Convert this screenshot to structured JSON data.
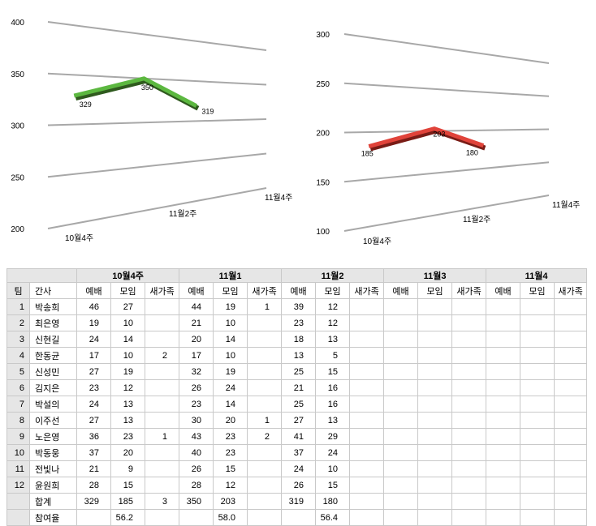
{
  "chart_data": [
    {
      "type": "line",
      "categories": [
        "10월4주",
        "11월2주",
        "11월4주"
      ],
      "values": [
        329,
        350,
        319
      ],
      "ylim": [
        200,
        400
      ],
      "yticks": [
        200,
        250,
        300,
        350,
        400
      ],
      "color": "#5cb840",
      "shade_color": "#2f5a1e"
    },
    {
      "type": "line",
      "categories": [
        "10월4주",
        "11월2주",
        "11월4주"
      ],
      "values": [
        185,
        203,
        180
      ],
      "ylim": [
        100,
        300
      ],
      "yticks": [
        100,
        150,
        200,
        250,
        300
      ],
      "color": "#e0433a",
      "shade_color": "#7a1c16"
    }
  ],
  "table": {
    "week_headers": [
      "10월4주",
      "11월1",
      "11월2",
      "11월3",
      "11월4"
    ],
    "columns": [
      "팀",
      "간사",
      "예배",
      "모임",
      "새가족",
      "예배",
      "모임",
      "새가족",
      "예배",
      "모임",
      "새가족",
      "예배",
      "모임",
      "새가족",
      "예배",
      "모임",
      "새가족"
    ],
    "rows": [
      [
        "1",
        "박송희",
        "46",
        "27",
        "",
        "44",
        "19",
        "1",
        "39",
        "12",
        "",
        "",
        "",
        "",
        "",
        "",
        ""
      ],
      [
        "2",
        "최은영",
        "19",
        "10",
        "",
        "21",
        "10",
        "",
        "23",
        "12",
        "",
        "",
        "",
        "",
        "",
        "",
        ""
      ],
      [
        "3",
        "신현길",
        "24",
        "14",
        "",
        "20",
        "14",
        "",
        "18",
        "13",
        "",
        "",
        "",
        "",
        "",
        "",
        ""
      ],
      [
        "4",
        "한동균",
        "17",
        "10",
        "2",
        "17",
        "10",
        "",
        "13",
        "5",
        "",
        "",
        "",
        "",
        "",
        "",
        ""
      ],
      [
        "5",
        "신성민",
        "27",
        "19",
        "",
        "32",
        "19",
        "",
        "25",
        "15",
        "",
        "",
        "",
        "",
        "",
        "",
        ""
      ],
      [
        "6",
        "김지은",
        "23",
        "12",
        "",
        "26",
        "24",
        "",
        "21",
        "16",
        "",
        "",
        "",
        "",
        "",
        "",
        ""
      ],
      [
        "7",
        "박설의",
        "24",
        "13",
        "",
        "23",
        "14",
        "",
        "25",
        "16",
        "",
        "",
        "",
        "",
        "",
        "",
        ""
      ],
      [
        "8",
        "이주선",
        "27",
        "13",
        "",
        "30",
        "20",
        "1",
        "27",
        "13",
        "",
        "",
        "",
        "",
        "",
        "",
        ""
      ],
      [
        "9",
        "노은영",
        "36",
        "23",
        "1",
        "43",
        "23",
        "2",
        "41",
        "29",
        "",
        "",
        "",
        "",
        "",
        "",
        ""
      ],
      [
        "10",
        "박동웅",
        "37",
        "20",
        "",
        "40",
        "23",
        "",
        "37",
        "24",
        "",
        "",
        "",
        "",
        "",
        "",
        ""
      ],
      [
        "11",
        "전빛나",
        "21",
        "9",
        "",
        "26",
        "15",
        "",
        "24",
        "10",
        "",
        "",
        "",
        "",
        "",
        "",
        ""
      ],
      [
        "12",
        "윤원희",
        "28",
        "15",
        "",
        "28",
        "12",
        "",
        "26",
        "15",
        "",
        "",
        "",
        "",
        "",
        "",
        ""
      ],
      [
        "",
        "합계",
        "329",
        "185",
        "3",
        "350",
        "203",
        "",
        "319",
        "180",
        "",
        "",
        "",
        "",
        "",
        "",
        ""
      ],
      [
        "",
        "참여율",
        "",
        "56.2",
        "",
        "",
        "58.0",
        "",
        "",
        "56.4",
        "",
        "",
        "",
        "",
        "",
        "",
        ""
      ]
    ]
  }
}
